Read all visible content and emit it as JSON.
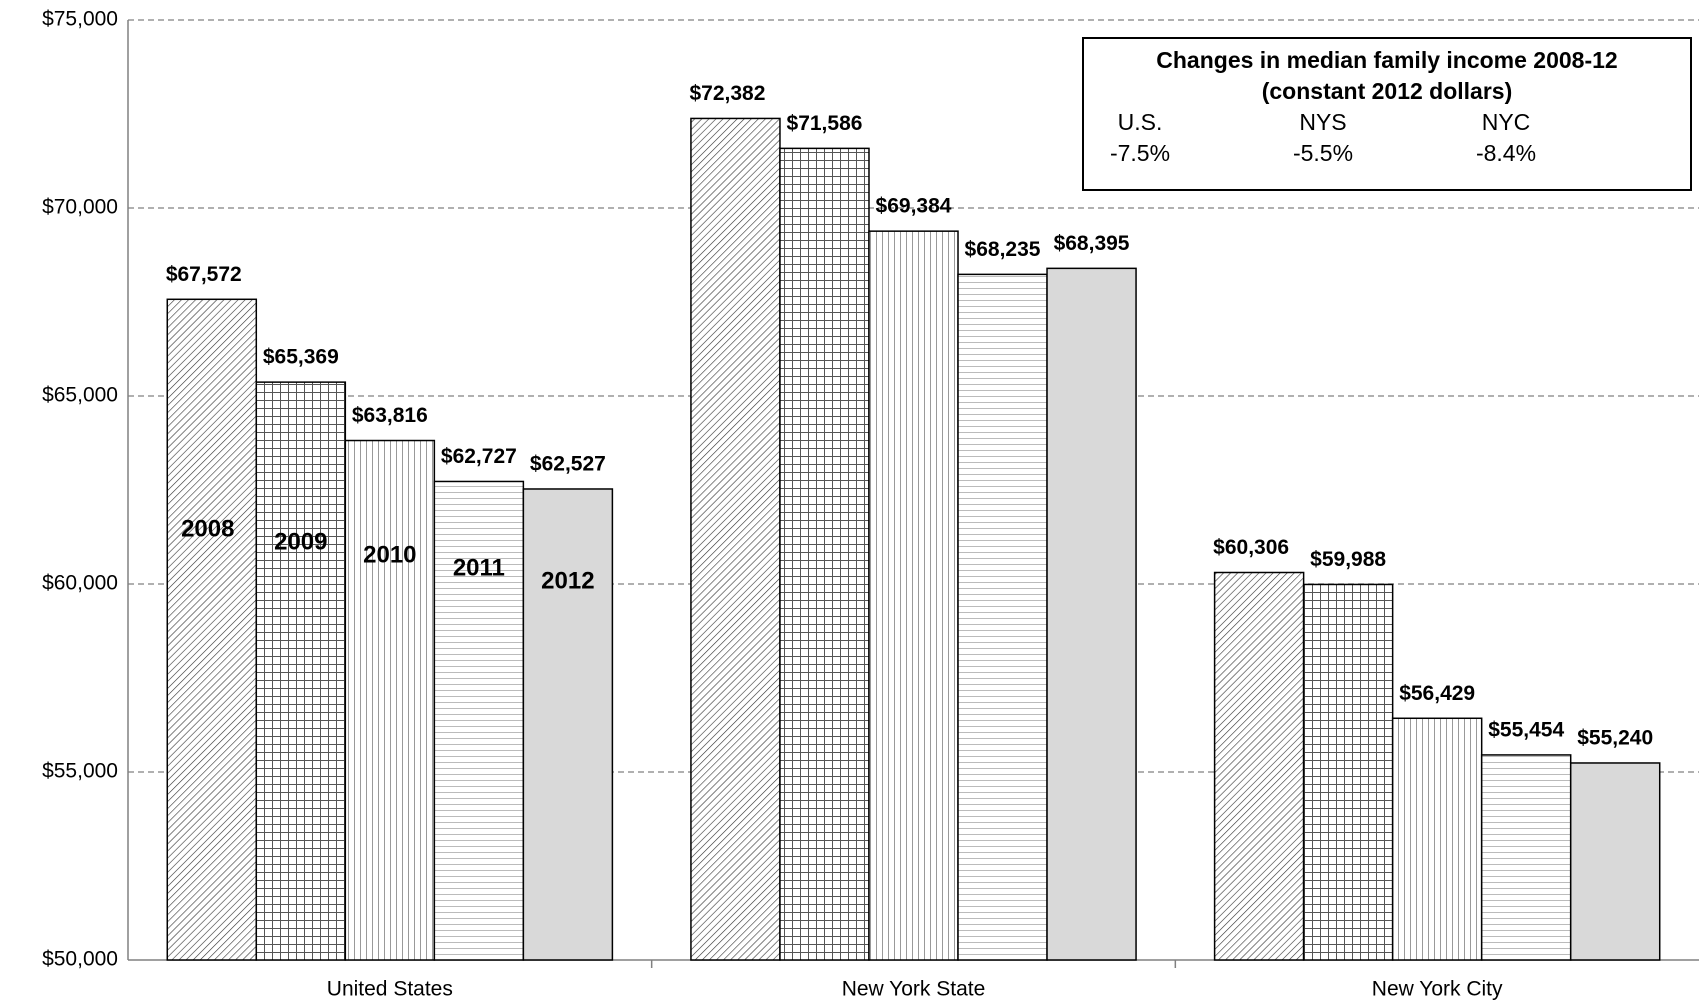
{
  "chart_data": {
    "type": "bar",
    "categories": [
      "United States",
      "New York State",
      "New York City"
    ],
    "series": [
      {
        "name": "2008",
        "color": "#ffffff",
        "pattern": "diagonal",
        "values": [
          67572,
          72382,
          60306
        ],
        "value_labels": [
          "$67,572",
          "$72,382",
          "$60,306"
        ]
      },
      {
        "name": "2009",
        "color": "#ffffff",
        "pattern": "grid",
        "values": [
          65369,
          71586,
          59988
        ],
        "value_labels": [
          "$65,369",
          "$71,586",
          "$59,988"
        ]
      },
      {
        "name": "2010",
        "color": "#ffffff",
        "pattern": "vertical",
        "values": [
          63816,
          69384,
          56429
        ],
        "value_labels": [
          "$63,816",
          "$69,384",
          "$56,429"
        ]
      },
      {
        "name": "2011",
        "color": "#ffffff",
        "pattern": "horizontal",
        "values": [
          62727,
          68235,
          55454
        ],
        "value_labels": [
          "$62,727",
          "$68,235",
          "$55,454"
        ]
      },
      {
        "name": "2012",
        "color": "#d9d9d9",
        "pattern": "solid",
        "values": [
          62527,
          68395,
          55240
        ],
        "value_labels": [
          "$62,527",
          "$68,395",
          "$55,240"
        ]
      }
    ],
    "ylim": [
      50000,
      75000
    ],
    "yticks": [
      {
        "value": 50000,
        "label": "$50,000"
      },
      {
        "value": 55000,
        "label": "$55,000"
      },
      {
        "value": 60000,
        "label": "$60,000"
      },
      {
        "value": 65000,
        "label": "$65,000"
      },
      {
        "value": 70000,
        "label": "$70,000"
      },
      {
        "value": 75000,
        "label": "$75,000"
      }
    ],
    "grid": true,
    "annotation": {
      "title": [
        "Changes in median family income 2008-12",
        "(constant 2012 dollars)"
      ],
      "items": [
        {
          "label": "U.S.",
          "text": "-7.5%"
        },
        {
          "label": "NYS",
          "text": "-5.5%"
        },
        {
          "label": "NYC",
          "text": "-8.4%"
        }
      ]
    }
  }
}
